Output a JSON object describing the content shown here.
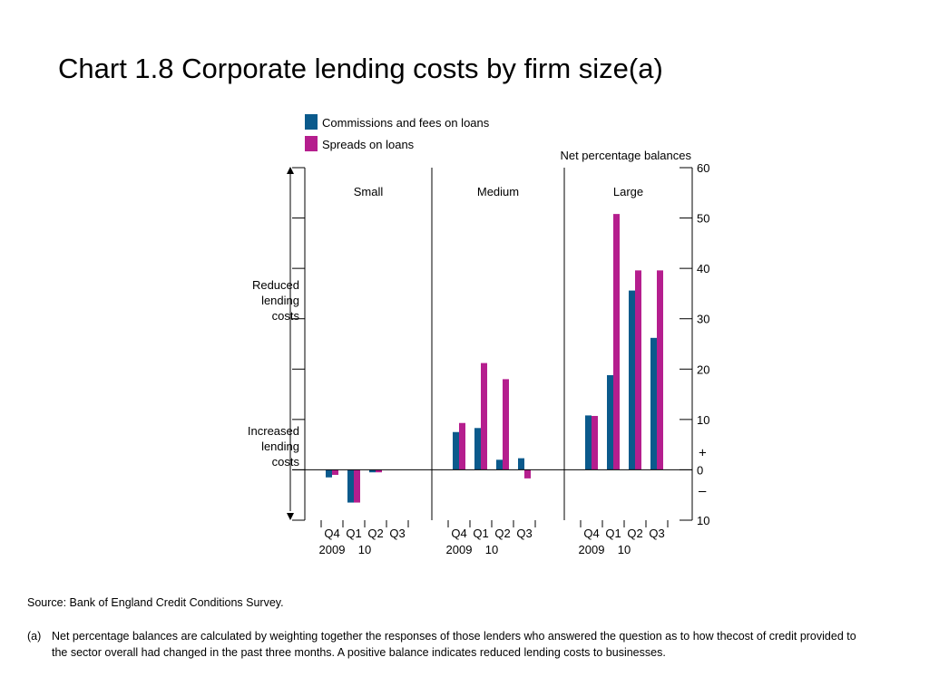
{
  "slide": {
    "title": "Chart 1.8  Corporate lending costs by firm size(a)",
    "source": "Source:  Bank of England Credit Conditions Survey.",
    "note_marker": "(a)",
    "note": "Net percentage balances are calculated by weighting together the responses of those lenders who answered the question as to how thecost of credit provided to the sector overall had changed in the past three months.  A positive balance indicates reduced lending costs to businesses."
  },
  "chart_data": {
    "type": "bar",
    "ylabel": "Net percentage balances",
    "ylim": [
      -10,
      60
    ],
    "yticks": [
      -10,
      0,
      10,
      20,
      30,
      40,
      50,
      60
    ],
    "ytick_labels": [
      "10",
      "0",
      "10",
      "20",
      "30",
      "40",
      "50",
      "60"
    ],
    "sign_plus": "+",
    "sign_minus": "–",
    "side_label_up": [
      "Reduced",
      "lending",
      "costs"
    ],
    "side_label_down": [
      "Increased",
      "lending",
      "costs"
    ],
    "legend": [
      {
        "name": "Commissions and fees on loans",
        "color": "#0b5a8c"
      },
      {
        "name": "Spreads on loans",
        "color": "#b51e8e"
      }
    ],
    "categories": [
      "Q4",
      "Q1",
      "Q2",
      "Q3"
    ],
    "year_labels": [
      "2009",
      "10"
    ],
    "panels": [
      {
        "name": "Small",
        "series": [
          {
            "name": "Commissions and fees on loans",
            "values": [
              -1.5,
              -6.5,
              -0.5,
              null
            ]
          },
          {
            "name": "Spreads on loans",
            "values": [
              -1,
              -6.5,
              -0.5,
              null
            ]
          }
        ]
      },
      {
        "name": "Medium",
        "series": [
          {
            "name": "Commissions and fees on loans",
            "values": [
              7.5,
              8.3,
              2,
              2.3
            ]
          },
          {
            "name": "Spreads on loans",
            "values": [
              9.3,
              21.2,
              18,
              -1.7
            ]
          }
        ]
      },
      {
        "name": "Large",
        "series": [
          {
            "name": "Commissions and fees on loans",
            "values": [
              10.8,
              18.8,
              35.6,
              26.2
            ]
          },
          {
            "name": "Spreads on loans",
            "values": [
              10.7,
              50.8,
              39.6,
              39.6
            ]
          }
        ]
      }
    ]
  }
}
